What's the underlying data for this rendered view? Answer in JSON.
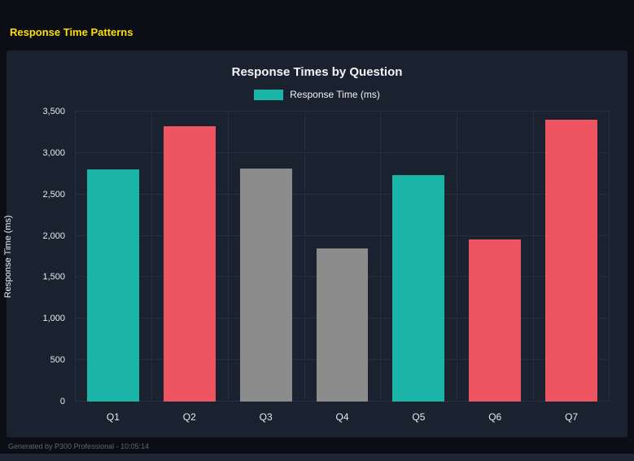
{
  "page": {
    "header_title": "Response Time Patterns",
    "footer": "Generated by P300 Professional - 10:05:14"
  },
  "colors": {
    "header_title": "#ffdf00",
    "page_bg": "#0b0e15",
    "panel_bg": "#1a2230",
    "grid": "#262e40",
    "axis_text": "#e8eaf0",
    "teal": "#1ab5a8",
    "red": "#ef5560",
    "gray": "#8c8c8c"
  },
  "chart_data": {
    "type": "bar",
    "title": "Response Times by Question",
    "legend": [
      "Response Time (ms)"
    ],
    "legend_position": "top",
    "categories": [
      "Q1",
      "Q2",
      "Q3",
      "Q4",
      "Q5",
      "Q6",
      "Q7"
    ],
    "values": [
      2800,
      3320,
      2810,
      1850,
      2730,
      1960,
      3400
    ],
    "bar_colors": [
      "#1ab5a8",
      "#ef5560",
      "#8c8c8c",
      "#8c8c8c",
      "#1ab5a8",
      "#ef5560",
      "#ef5560"
    ],
    "xlabel": "",
    "ylabel": "Response Time (ms)",
    "ylim": [
      0,
      3500
    ],
    "yticks": [
      0,
      500,
      1000,
      1500,
      2000,
      2500,
      3000,
      3500
    ],
    "ytick_labels": [
      "0",
      "500",
      "1,000",
      "1,500",
      "2,000",
      "2,500",
      "3,000",
      "3,500"
    ],
    "grid": true
  }
}
